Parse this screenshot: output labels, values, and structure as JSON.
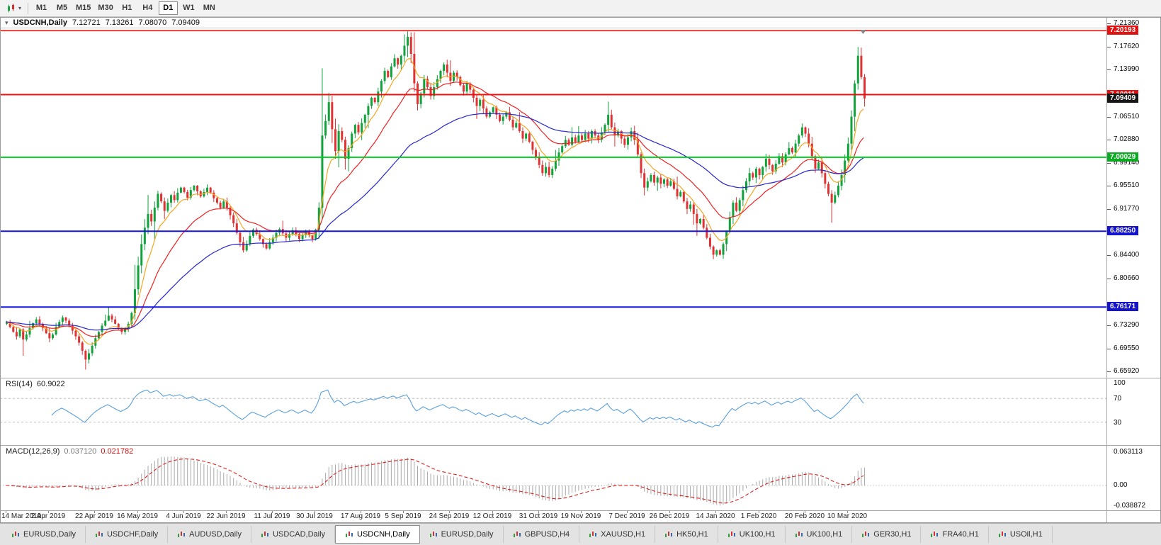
{
  "toolbar": {
    "timeframes": [
      "M1",
      "M5",
      "M15",
      "M30",
      "H1",
      "H4",
      "D1",
      "W1",
      "MN"
    ],
    "active_timeframe": "D1"
  },
  "chart": {
    "title": "USDCNH,Daily",
    "ohlc": {
      "open": "7.12721",
      "high": "7.13261",
      "low": "7.08070",
      "close": "7.09409"
    }
  },
  "chart_data": {
    "type": "candlestick",
    "symbol": "USDCNH",
    "timeframe": "Daily",
    "candle_up_color": "#12a23c",
    "candle_down_color": "#e03232",
    "first_open": 6.735,
    "closes": [
      6.738,
      6.73,
      6.722,
      6.715,
      6.726,
      6.71,
      6.718,
      6.728,
      6.736,
      6.742,
      6.735,
      6.728,
      6.72,
      6.712,
      6.718,
      6.73,
      6.738,
      6.745,
      6.74,
      6.732,
      6.724,
      6.715,
      6.705,
      6.692,
      6.678,
      6.688,
      6.7,
      6.712,
      6.722,
      6.732,
      6.74,
      6.748,
      6.742,
      6.735,
      6.728,
      6.722,
      6.728,
      6.735,
      6.752,
      6.79,
      6.828,
      6.862,
      6.888,
      6.91,
      6.898,
      6.92,
      6.942,
      6.93,
      6.915,
      6.928,
      6.94,
      6.932,
      6.944,
      6.952,
      6.945,
      6.936,
      6.948,
      6.955,
      6.946,
      6.938,
      6.945,
      6.952,
      6.944,
      6.935,
      6.928,
      6.92,
      6.93,
      6.92,
      6.908,
      6.895,
      6.88,
      6.865,
      6.852,
      6.862,
      6.875,
      6.885,
      6.878,
      6.87,
      6.862,
      6.855,
      6.865,
      6.872,
      6.88,
      6.886,
      6.879,
      6.872,
      6.878,
      6.884,
      6.878,
      6.87,
      6.876,
      6.882,
      6.876,
      6.87,
      6.885,
      6.92,
      7.035,
      7.058,
      7.088,
      7.045,
      7.01,
      7.042,
      7.028,
      6.998,
      7.015,
      7.038,
      7.052,
      7.04,
      7.055,
      7.068,
      7.082,
      7.095,
      7.088,
      7.105,
      7.122,
      7.138,
      7.128,
      7.145,
      7.158,
      7.148,
      7.162,
      7.178,
      7.192,
      7.165,
      7.118,
      7.085,
      7.102,
      7.125,
      7.112,
      7.098,
      7.112,
      7.125,
      7.138,
      7.148,
      7.135,
      7.122,
      7.135,
      7.128,
      7.115,
      7.105,
      7.118,
      7.108,
      7.095,
      7.082,
      7.092,
      7.078,
      7.065,
      7.072,
      7.08,
      7.068,
      7.058,
      7.065,
      7.072,
      7.06,
      7.048,
      7.055,
      7.042,
      7.03,
      7.038,
      7.025,
      7.012,
      7.0,
      6.988,
      6.975,
      6.985,
      6.972,
      6.982,
      6.995,
      7.008,
      7.018,
      7.028,
      7.02,
      7.032,
      7.025,
      7.035,
      7.028,
      7.038,
      7.03,
      7.042,
      7.035,
      7.028,
      7.04,
      7.052,
      7.068,
      7.048,
      7.035,
      7.042,
      7.03,
      7.02,
      7.032,
      7.042,
      7.028,
      7.005,
      6.975,
      6.952,
      6.962,
      6.972,
      6.96,
      6.968,
      6.958,
      6.965,
      6.955,
      6.962,
      6.95,
      6.938,
      6.945,
      6.93,
      6.918,
      6.925,
      6.91,
      6.895,
      6.902,
      6.888,
      6.872,
      6.858,
      6.845,
      6.852,
      6.845,
      6.862,
      6.882,
      6.905,
      6.928,
      6.915,
      6.932,
      6.948,
      6.962,
      6.975,
      6.968,
      6.982,
      6.972,
      6.985,
      6.998,
      6.988,
      6.978,
      6.99,
      7.002,
      6.992,
      7.005,
      7.015,
      7.008,
      7.022,
      7.035,
      7.048,
      7.038,
      7.022,
      7.002,
      6.982,
      6.992,
      6.975,
      6.958,
      6.942,
      6.928,
      6.94,
      6.955,
      6.972,
      6.995,
      7.022,
      7.065,
      7.118,
      7.162,
      7.128,
      7.094
    ],
    "wick_overrides": {
      "5": [
        6.728,
        6.684
      ],
      "24": [
        6.694,
        6.662
      ],
      "96": [
        7.142,
        6.902
      ],
      "121": [
        7.196,
        7.152
      ],
      "122": [
        7.201,
        7.16
      ],
      "183": [
        7.089,
        7.041
      ],
      "215": [
        6.86,
        6.838
      ],
      "251": [
        6.948,
        6.896
      ],
      "259": [
        7.176,
        7.108
      ],
      "261": [
        7.133,
        7.081
      ]
    },
    "price_axis": {
      "min": 6.6592,
      "max": 7.2136,
      "ticks": [
        {
          "p": 7.2136,
          "t": "7.21360"
        },
        {
          "p": 7.1762,
          "t": "7.17620"
        },
        {
          "p": 7.1399,
          "t": "7.13990"
        },
        {
          "p": 7.0651,
          "t": "7.06510"
        },
        {
          "p": 7.0288,
          "t": "7.02880"
        },
        {
          "p": 6.9914,
          "t": "6.99140"
        },
        {
          "p": 6.9551,
          "t": "6.95510"
        },
        {
          "p": 6.9177,
          "t": "6.91770"
        },
        {
          "p": 6.844,
          "t": "6.84400"
        },
        {
          "p": 6.8066,
          "t": "6.80660"
        },
        {
          "p": 6.7329,
          "t": "6.73290"
        },
        {
          "p": 6.6955,
          "t": "6.69550"
        },
        {
          "p": 6.6592,
          "t": "6.65920"
        }
      ]
    },
    "price_markers": [
      {
        "p": 7.20193,
        "t": "7.20193",
        "bg": "#e11212"
      },
      {
        "p": 7.10011,
        "t": "7.10011",
        "bg": "#e11212"
      },
      {
        "p": 7.09409,
        "t": "7.09409",
        "bg": "#161616"
      },
      {
        "p": 7.00029,
        "t": "7.00029",
        "bg": "#0caa22"
      },
      {
        "p": 6.8825,
        "t": "6.88250",
        "bg": "#1414cc"
      },
      {
        "p": 6.76171,
        "t": "6.76171",
        "bg": "#1414cc"
      }
    ],
    "hlines": [
      {
        "p": 7.20193,
        "c": "#ee1111",
        "w": 1.6
      },
      {
        "p": 7.10011,
        "c": "#ee1111",
        "w": 2
      },
      {
        "p": 7.00029,
        "c": "#00cc22",
        "w": 2
      },
      {
        "p": 6.8825,
        "c": "#1515dd",
        "w": 2
      },
      {
        "p": 6.76171,
        "c": "#1515dd",
        "w": 2
      }
    ],
    "moving_averages": [
      {
        "period": 8,
        "color": "#f5a623"
      },
      {
        "period": 21,
        "color": "#ee2222"
      },
      {
        "period": 55,
        "color": "#2626cc"
      }
    ],
    "x_labels": [
      {
        "i": 0,
        "t": "14 Mar 2019"
      },
      {
        "i": 13,
        "t": "2 Apr 2019"
      },
      {
        "i": 27,
        "t": "22 Apr 2019"
      },
      {
        "i": 40,
        "t": "16 May 2019"
      },
      {
        "i": 54,
        "t": "4 Jun 2019"
      },
      {
        "i": 67,
        "t": "22 Jun 2019"
      },
      {
        "i": 81,
        "t": "11 Jul 2019"
      },
      {
        "i": 94,
        "t": "30 Jul 2019"
      },
      {
        "i": 108,
        "t": "17 Aug 2019"
      },
      {
        "i": 121,
        "t": "5 Sep 2019"
      },
      {
        "i": 135,
        "t": "24 Sep 2019"
      },
      {
        "i": 148,
        "t": "12 Oct 2019"
      },
      {
        "i": 162,
        "t": "31 Oct 2019"
      },
      {
        "i": 175,
        "t": "19 Nov 2019"
      },
      {
        "i": 189,
        "t": "7 Dec 2019"
      },
      {
        "i": 202,
        "t": "26 Dec 2019"
      },
      {
        "i": 216,
        "t": "14 Jan 2020"
      },
      {
        "i": 229,
        "t": "1 Feb 2020"
      },
      {
        "i": 243,
        "t": "20 Feb 2020"
      },
      {
        "i": 256,
        "t": "10 Mar 2020"
      }
    ],
    "rsi": {
      "label": "RSI(14)",
      "value": "60.9022",
      "period": 14,
      "color": "#5aa0dc",
      "levels": [
        100,
        70,
        30
      ],
      "dashed_levels": [
        70,
        30
      ]
    },
    "macd": {
      "label": "MACD(12,26,9)",
      "value_main": "0.037120",
      "value_signal": "0.021782",
      "fast": 12,
      "slow": 26,
      "signal": 9,
      "hist_color": "#a9a9a9",
      "signal_color": "#e02020",
      "scale_max": 0.063113,
      "scale_min": -0.038872,
      "axis_labels": [
        {
          "v": 0.063113,
          "t": "0.063113"
        },
        {
          "v": 0,
          "t": "0.00"
        },
        {
          "v": -0.038872,
          "t": "-0.038872"
        }
      ]
    }
  },
  "tabs": [
    "EURUSD,Daily",
    "USDCHF,Daily",
    "AUDUSD,Daily",
    "USDCAD,Daily",
    "USDCNH,Daily",
    "EURUSD,Daily",
    "GBPUSD,H4",
    "XAUUSD,H1",
    "HK50,H1",
    "UK100,H1",
    "UK100,H1",
    "GER30,H1",
    "FRA40,H1",
    "USOil,H1"
  ],
  "active_tab_index": 4
}
